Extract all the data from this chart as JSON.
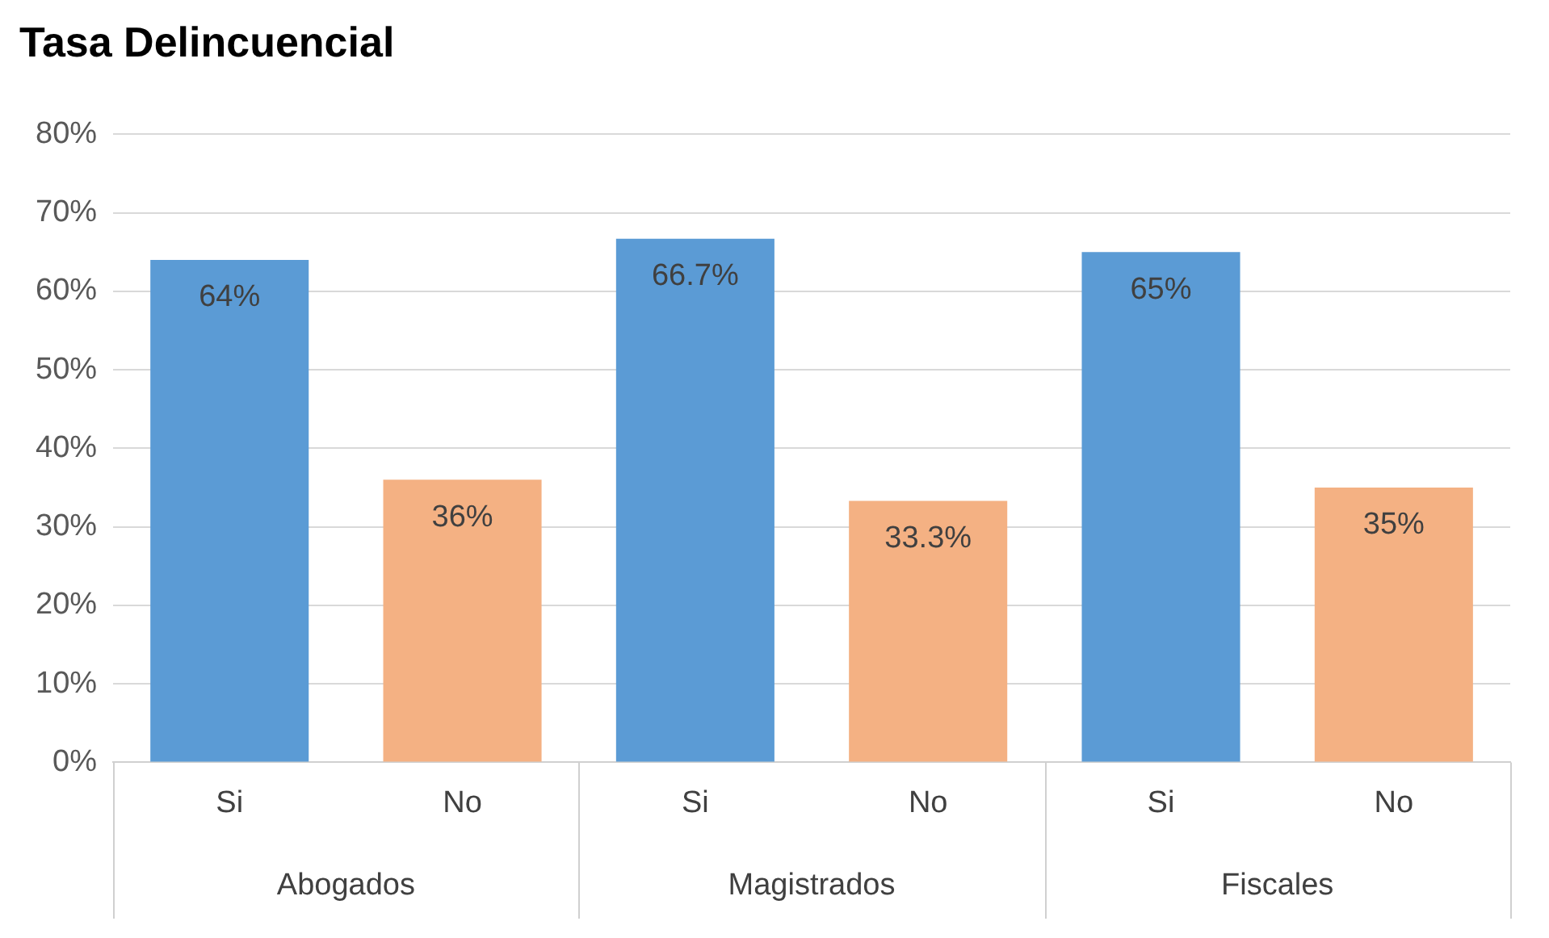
{
  "chart_data": {
    "type": "bar",
    "title": "Tasa Delincuencial",
    "categories": [
      "Si",
      "No",
      "Si",
      "No",
      "Si",
      "No"
    ],
    "values": [
      64,
      36,
      66.7,
      33.3,
      65,
      35
    ],
    "value_labels": [
      "64%",
      "36%",
      "66.7%",
      "33.3%",
      "65%",
      "35%"
    ],
    "colors": [
      "#5b9bd5",
      "#f4b183",
      "#5b9bd5",
      "#f4b183",
      "#5b9bd5",
      "#f4b183"
    ],
    "ylim": [
      0,
      80
    ],
    "yticks": [
      {
        "value": 0,
        "label": "0%"
      },
      {
        "value": 10,
        "label": "10%"
      },
      {
        "value": 20,
        "label": "20%"
      },
      {
        "value": 30,
        "label": "30%"
      },
      {
        "value": 40,
        "label": "40%"
      },
      {
        "value": 50,
        "label": "50%"
      },
      {
        "value": 60,
        "label": "60%"
      },
      {
        "value": 70,
        "label": "70%"
      },
      {
        "value": 80,
        "label": "80%"
      }
    ],
    "grid": "y",
    "annotations": [
      "Abogados",
      "Magistrados",
      "Fiscales"
    ]
  }
}
